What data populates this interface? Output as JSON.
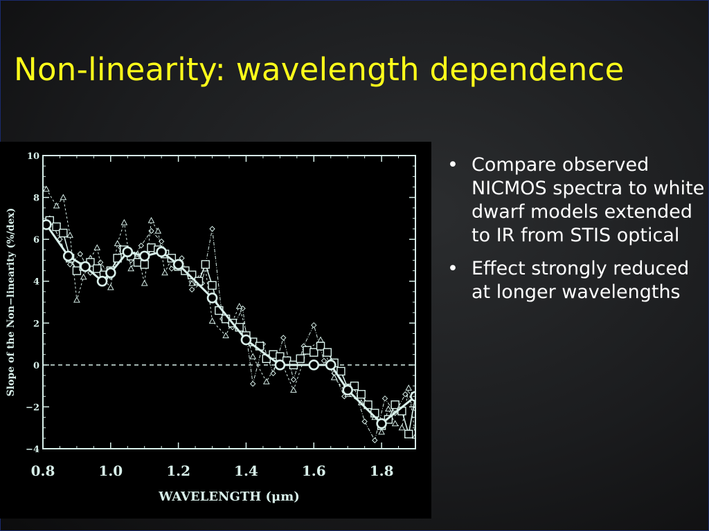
{
  "slide": {
    "title": "Non-linearity: wavelength dependence",
    "bullets": [
      "Compare observed NICMOS spectra to white dwarf models extended to IR from STIS optical",
      "Effect strongly reduced at longer wavelengths"
    ],
    "bullet_glyph": "•",
    "colors": {
      "title": "#ffff1a",
      "text": "#ffffff",
      "plot": "#d8f0ea"
    }
  },
  "chart_data": {
    "type": "line",
    "xlabel": "WAVELENGTH (μm)",
    "ylabel": "Slope of the Non−linearity (%/dex)",
    "xlim": [
      0.8,
      1.9
    ],
    "ylim": [
      -4,
      10
    ],
    "xticks": [
      "0.8",
      "1.0",
      "1.2",
      "1.4",
      "1.6",
      "1.8"
    ],
    "yticks": [
      "10",
      "8",
      "6",
      "4",
      "2",
      "0",
      "−2",
      "−4"
    ],
    "reference_line": 0,
    "series": [
      {
        "marker": "circle",
        "x": [
          0.81,
          0.875,
          0.925,
          0.975,
          1.0,
          1.05,
          1.1,
          1.15,
          1.2,
          1.3,
          1.4,
          1.5,
          1.6,
          1.65,
          1.7,
          1.8,
          1.9
        ],
        "y": [
          6.7,
          5.2,
          4.7,
          4.0,
          4.4,
          5.4,
          5.2,
          5.4,
          4.8,
          3.2,
          1.2,
          0.0,
          0.0,
          0.0,
          -1.2,
          -2.8,
          -1.5
        ]
      },
      {
        "marker": "square",
        "x": [
          0.82,
          0.84,
          0.86,
          0.88,
          0.9,
          0.92,
          0.94,
          0.96,
          0.98,
          1.0,
          1.02,
          1.04,
          1.06,
          1.08,
          1.1,
          1.12,
          1.14,
          1.16,
          1.18,
          1.2,
          1.22,
          1.24,
          1.26,
          1.28,
          1.3,
          1.32,
          1.34,
          1.36,
          1.38,
          1.4,
          1.42,
          1.44,
          1.46,
          1.48,
          1.5,
          1.52,
          1.54,
          1.56,
          1.58,
          1.6,
          1.62,
          1.64,
          1.66,
          1.68,
          1.7,
          1.72,
          1.74,
          1.76,
          1.78,
          1.8,
          1.82,
          1.84,
          1.86,
          1.88,
          1.9
        ],
        "y": [
          6.9,
          6.6,
          6.3,
          5.1,
          4.5,
          4.7,
          4.9,
          4.6,
          4.3,
          4.5,
          5.1,
          5.5,
          5.2,
          4.9,
          4.8,
          5.6,
          5.5,
          5.3,
          5.1,
          4.7,
          4.5,
          4.3,
          4.0,
          4.8,
          3.8,
          2.6,
          2.2,
          2.0,
          1.8,
          1.4,
          1.1,
          0.9,
          0.3,
          0.5,
          0.4,
          0.2,
          0.0,
          0.3,
          0.7,
          0.6,
          0.9,
          0.6,
          0.1,
          -0.3,
          -1.1,
          -1.0,
          -1.4,
          -1.9,
          -2.3,
          -2.9,
          -2.6,
          -1.9,
          -2.2,
          -3.3,
          -1.5
        ]
      },
      {
        "marker": "triangle",
        "x": [
          0.81,
          0.84,
          0.86,
          0.88,
          0.9,
          0.92,
          0.94,
          0.96,
          0.98,
          1.0,
          1.02,
          1.04,
          1.06,
          1.08,
          1.1,
          1.12,
          1.14,
          1.16,
          1.18,
          1.2,
          1.24,
          1.28,
          1.3,
          1.34,
          1.38,
          1.42,
          1.46,
          1.5,
          1.54,
          1.58,
          1.62,
          1.66,
          1.7,
          1.74,
          1.78,
          1.8,
          1.82,
          1.84,
          1.86,
          1.88,
          1.9
        ],
        "y": [
          8.4,
          7.6,
          8.0,
          6.2,
          3.1,
          4.2,
          5.1,
          5.6,
          4.1,
          3.7,
          5.8,
          6.8,
          4.6,
          5.3,
          3.9,
          6.9,
          6.4,
          4.4,
          5.1,
          4.9,
          3.9,
          4.6,
          2.1,
          1.4,
          2.8,
          0.4,
          -0.8,
          0.3,
          -1.2,
          0.7,
          1.2,
          -0.6,
          -1.4,
          -1.8,
          -2.5,
          -3.2,
          -2.1,
          -2.8,
          -3.0,
          -1.1,
          -3.4
        ]
      },
      {
        "marker": "diamond",
        "x": [
          0.82,
          0.85,
          0.88,
          0.91,
          0.94,
          0.97,
          1.0,
          1.03,
          1.06,
          1.09,
          1.12,
          1.15,
          1.18,
          1.21,
          1.24,
          1.27,
          1.3,
          1.33,
          1.36,
          1.39,
          1.42,
          1.45,
          1.48,
          1.51,
          1.54,
          1.57,
          1.6,
          1.63,
          1.66,
          1.69,
          1.72,
          1.75,
          1.78,
          1.81,
          1.84,
          1.87,
          1.9
        ],
        "y": [
          7.0,
          6.0,
          4.8,
          5.3,
          4.4,
          4.9,
          4.2,
          5.6,
          5.0,
          5.7,
          6.4,
          5.9,
          4.6,
          5.1,
          3.6,
          3.9,
          6.5,
          2.2,
          1.8,
          2.7,
          -0.9,
          1.0,
          -0.4,
          1.3,
          -0.7,
          0.9,
          1.9,
          0.2,
          -0.4,
          -1.5,
          -1.1,
          -2.7,
          -3.6,
          -1.6,
          -2.3,
          -1.4,
          -2.1
        ]
      }
    ]
  }
}
